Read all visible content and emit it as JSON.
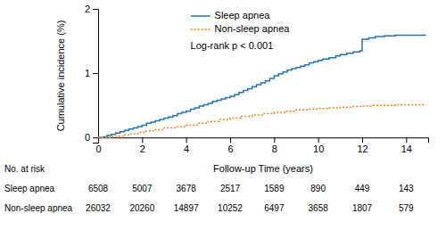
{
  "chart_data": {
    "type": "step",
    "y_label": "Cumulative incidence (%)",
    "x_label": "Follow-up Time (years)",
    "xlim": [
      0,
      15
    ],
    "ylim": [
      -0.08,
      2.0
    ],
    "xticks": [
      0,
      2,
      4,
      6,
      8,
      10,
      12,
      14
    ],
    "yticks": [
      0,
      1,
      2
    ],
    "legend": "upper left",
    "annotation": "Log-rank p < 0.001",
    "series": [
      {
        "name": "Sleep apnea",
        "line_style": "solid",
        "x": [
          0,
          0.25,
          0.4,
          0.6,
          0.8,
          1.0,
          1.2,
          1.4,
          1.6,
          1.8,
          2.0,
          2.2,
          2.4,
          2.6,
          2.8,
          3.0,
          3.2,
          3.4,
          3.6,
          3.8,
          4.0,
          4.2,
          4.4,
          4.6,
          4.8,
          5.0,
          5.2,
          5.4,
          5.6,
          5.8,
          6.0,
          6.2,
          6.4,
          6.6,
          6.8,
          7.0,
          7.2,
          7.4,
          7.6,
          7.8,
          8.0,
          8.2,
          8.4,
          8.6,
          8.8,
          9.0,
          9.2,
          9.4,
          9.6,
          9.8,
          10.0,
          10.2,
          10.5,
          10.8,
          11.0,
          11.3,
          11.6,
          11.9,
          12.0,
          12.3,
          12.6,
          13.0,
          13.5,
          14.0,
          14.5,
          14.9
        ],
        "values": [
          0,
          0.01,
          0.03,
          0.05,
          0.07,
          0.09,
          0.11,
          0.13,
          0.15,
          0.17,
          0.19,
          0.22,
          0.24,
          0.26,
          0.28,
          0.3,
          0.32,
          0.34,
          0.37,
          0.39,
          0.41,
          0.44,
          0.46,
          0.49,
          0.51,
          0.53,
          0.56,
          0.58,
          0.6,
          0.62,
          0.64,
          0.67,
          0.7,
          0.73,
          0.76,
          0.79,
          0.82,
          0.85,
          0.88,
          0.92,
          0.96,
          0.99,
          1.02,
          1.05,
          1.07,
          1.09,
          1.11,
          1.13,
          1.16,
          1.18,
          1.2,
          1.22,
          1.24,
          1.27,
          1.29,
          1.31,
          1.33,
          1.35,
          1.53,
          1.55,
          1.57,
          1.58,
          1.59,
          1.59,
          1.59,
          1.59
        ]
      },
      {
        "name": "Non-sleep apnea",
        "line_style": "dotted",
        "x": [
          0,
          0.6,
          0.9,
          1.2,
          1.5,
          1.8,
          2.1,
          2.5,
          3.0,
          3.5,
          4.0,
          4.5,
          5.0,
          5.5,
          6.0,
          6.5,
          7.0,
          7.5,
          8.0,
          8.5,
          9.0,
          9.5,
          10.0,
          10.5,
          11.0,
          11.5,
          12.0,
          12.5,
          13.0,
          13.5,
          14.0,
          14.5,
          14.9
        ],
        "values": [
          0,
          0.01,
          0.02,
          0.04,
          0.06,
          0.08,
          0.1,
          0.12,
          0.15,
          0.17,
          0.19,
          0.22,
          0.25,
          0.28,
          0.3,
          0.33,
          0.35,
          0.37,
          0.39,
          0.41,
          0.43,
          0.44,
          0.45,
          0.46,
          0.47,
          0.48,
          0.49,
          0.5,
          0.5,
          0.51,
          0.51,
          0.51,
          0.51
        ]
      }
    ],
    "risk_table": {
      "label": "No. at risk",
      "times": [
        0,
        2,
        4,
        6,
        8,
        10,
        12,
        14
      ],
      "rows": [
        {
          "name": "Sleep apnea",
          "values": [
            6508,
            5007,
            3678,
            2517,
            1589,
            890,
            449,
            143
          ]
        },
        {
          "name": "Non-sleep apnea",
          "values": [
            26032,
            20260,
            14897,
            10252,
            6497,
            3658,
            1807,
            579
          ]
        }
      ]
    }
  }
}
